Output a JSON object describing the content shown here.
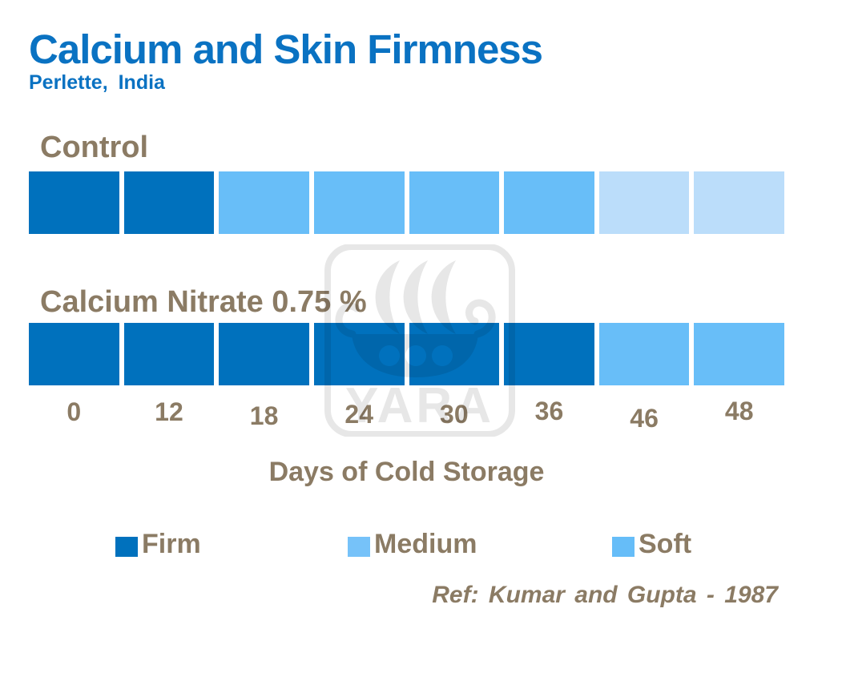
{
  "title": "Calcium and Skin Firmness",
  "subtitle": "Perlette, India",
  "reference": "Ref: Kumar and Gupta - 1987",
  "watermark": "YARA",
  "colors": {
    "title_blue": "#0a72c2",
    "label_brown": "#8b7b64",
    "firm": "#0071bd",
    "medium": "#68bef8",
    "soft": "#bbddfa",
    "legend_firm": "#0071bd",
    "legend_medium": "#76c2f9",
    "legend_soft": "#66bdf8",
    "watermark_gray": "#e7e7e7"
  },
  "chart_data": {
    "type": "bar",
    "title": "Calcium and Skin Firmness",
    "subtitle": "Perlette, India",
    "categories": [
      "0",
      "12",
      "18",
      "24",
      "30",
      "36",
      "46",
      "48"
    ],
    "xlabel": "Days of Cold Storage",
    "series": [
      {
        "name": "Control",
        "values": [
          "Firm",
          "Firm",
          "Medium",
          "Medium",
          "Medium",
          "Medium",
          "Soft",
          "Soft"
        ]
      },
      {
        "name": "Calcium Nitrate 0.75 %",
        "values": [
          "Firm",
          "Firm",
          "Firm",
          "Firm",
          "Firm",
          "Firm",
          "Medium",
          "Medium"
        ]
      }
    ],
    "legend_entries": [
      "Firm",
      "Medium",
      "Soft"
    ],
    "legend_position": "bottom",
    "grid": false,
    "annotation": "Ref: Kumar and Gupta - 1987"
  },
  "rows": [
    {
      "label": "Control",
      "cells": [
        "firm",
        "firm",
        "medium",
        "medium",
        "medium",
        "medium",
        "soft",
        "soft"
      ]
    },
    {
      "label": "Calcium Nitrate 0.75 %",
      "cells": [
        "firm",
        "firm",
        "firm",
        "firm",
        "firm",
        "firm",
        "medium",
        "medium"
      ]
    }
  ],
  "axis": {
    "ticks": [
      "0",
      "12",
      "18",
      "24",
      "30",
      "36",
      "46",
      "48"
    ],
    "label": "Days of Cold Storage"
  },
  "legend": [
    {
      "label": "Firm",
      "color_key": "legend_firm"
    },
    {
      "label": "Medium",
      "color_key": "legend_medium"
    },
    {
      "label": "Soft",
      "color_key": "legend_soft"
    }
  ]
}
